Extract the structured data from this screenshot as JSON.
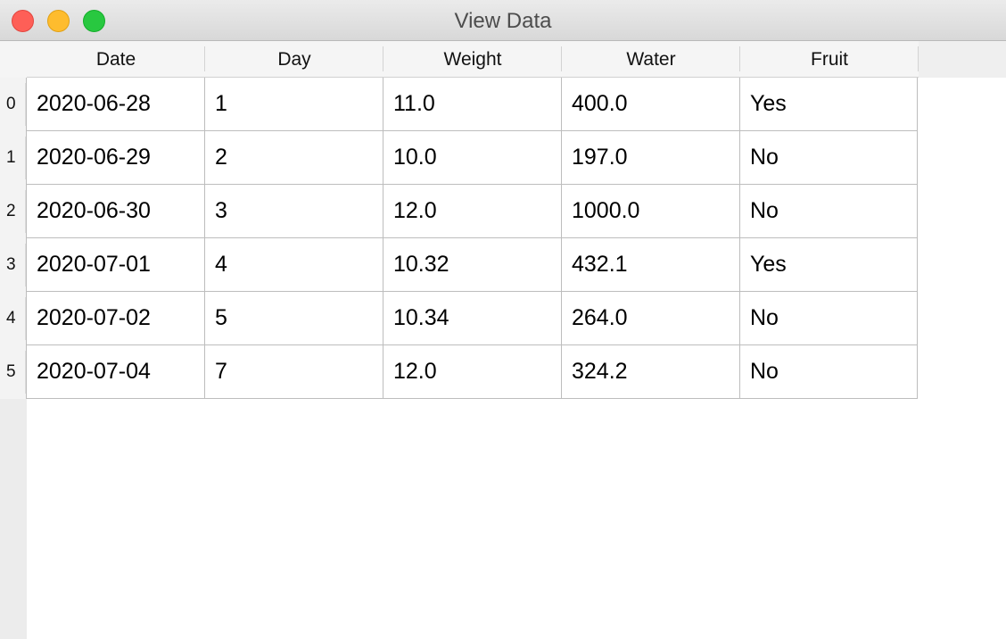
{
  "window": {
    "title": "View Data"
  },
  "table": {
    "columns": [
      "Date",
      "Day",
      "Weight",
      "Water",
      "Fruit"
    ],
    "rows": [
      {
        "index": "0",
        "cells": [
          "2020-06-28",
          "1",
          "11.0",
          "400.0",
          "Yes"
        ]
      },
      {
        "index": "1",
        "cells": [
          "2020-06-29",
          "2",
          "10.0",
          "197.0",
          "No"
        ]
      },
      {
        "index": "2",
        "cells": [
          "2020-06-30",
          "3",
          "12.0",
          "1000.0",
          "No"
        ]
      },
      {
        "index": "3",
        "cells": [
          "2020-07-01",
          "4",
          "10.32",
          "432.1",
          "Yes"
        ]
      },
      {
        "index": "4",
        "cells": [
          "2020-07-02",
          "5",
          "10.34",
          "264.0",
          "No"
        ]
      },
      {
        "index": "5",
        "cells": [
          "2020-07-04",
          "7",
          "12.0",
          "324.2",
          "No"
        ]
      }
    ]
  },
  "colors": {
    "close": "#fe5f57",
    "minimize": "#febc2e",
    "zoom": "#28c840"
  }
}
